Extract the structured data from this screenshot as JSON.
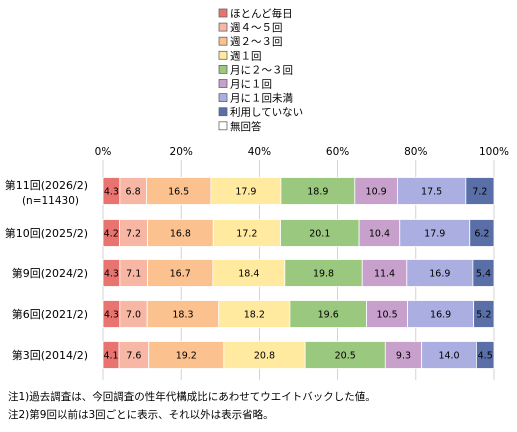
{
  "chart_data": {
    "type": "bar",
    "orientation": "horizontal",
    "stacked": true,
    "x_axis": {
      "min": 0,
      "max": 100,
      "step": 20,
      "unit": "%",
      "tick_labels": [
        "0%",
        "20%",
        "40%",
        "60%",
        "80%",
        "100%"
      ]
    },
    "grid": true,
    "legend_position": "top",
    "categories": [
      {
        "label": "第11回(2026/2)",
        "sublabel": "(n=11430)"
      },
      {
        "label": "第10回(2025/2)",
        "sublabel": ""
      },
      {
        "label": "第9回(2024/2)",
        "sublabel": ""
      },
      {
        "label": "第6回(2021/2)",
        "sublabel": ""
      },
      {
        "label": "第3回(2014/2)",
        "sublabel": ""
      }
    ],
    "series": [
      {
        "name": "ほとんど毎日",
        "color": "#e8736f",
        "values": [
          4.3,
          4.2,
          4.3,
          4.3,
          4.1
        ]
      },
      {
        "name": "週４～５回",
        "color": "#f8b6a5",
        "values": [
          6.8,
          7.2,
          7.1,
          7.0,
          7.6
        ]
      },
      {
        "name": "週２～３回",
        "color": "#fbc28f",
        "values": [
          16.5,
          16.8,
          16.7,
          18.3,
          19.2
        ]
      },
      {
        "name": "週１回",
        "color": "#ffeaa0",
        "values": [
          17.9,
          17.2,
          18.4,
          18.2,
          20.8
        ]
      },
      {
        "name": "月に２～３回",
        "color": "#9bc87f",
        "values": [
          18.9,
          20.1,
          19.8,
          19.6,
          20.5
        ]
      },
      {
        "name": "月に１回",
        "color": "#c7a0cc",
        "values": [
          10.9,
          10.4,
          11.4,
          10.5,
          9.3
        ]
      },
      {
        "name": "月に１回未満",
        "color": "#aaaee0",
        "values": [
          17.5,
          17.9,
          16.9,
          16.9,
          14.0
        ]
      },
      {
        "name": "利用していない",
        "color": "#5a6fa8",
        "values": [
          7.2,
          6.2,
          5.4,
          5.2,
          4.5
        ]
      },
      {
        "name": "無回答",
        "color": "#ffffff",
        "values": [
          0,
          0,
          0,
          0,
          0
        ]
      }
    ]
  },
  "notes": [
    "注1)過去調査は、今回調査の性年代構成比にあわせてウエイトバックした値。",
    "注2)第9回以前は3回ごとに表示、それ以外は表示省略。"
  ]
}
